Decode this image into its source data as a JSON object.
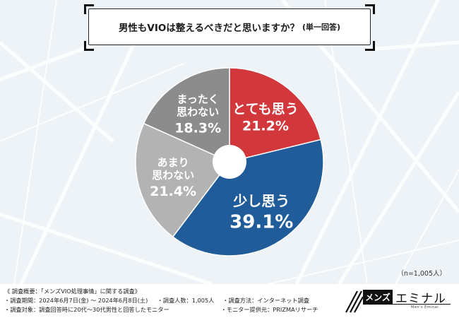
{
  "title": "男性もVIOは整えるべきだと思いますか？",
  "title_suffix": "(単一回答)",
  "sample_size": "（n=1,005人）",
  "chart_data": {
    "type": "pie",
    "donut": true,
    "slices": [
      {
        "label_lines": [
          "とても思う"
        ],
        "value": 21.2,
        "value_text": "21.2%",
        "color": "#d2373c"
      },
      {
        "label_lines": [
          "少し思う"
        ],
        "value": 39.1,
        "value_text": "39.1%",
        "color": "#1f5c99"
      },
      {
        "label_lines": [
          "あまり",
          "思わない"
        ],
        "value": 21.4,
        "value_text": "21.4%",
        "color": "#b3b3b3"
      },
      {
        "label_lines": [
          "まったく",
          "思わない"
        ],
        "value": 18.3,
        "value_text": "18.3%",
        "color": "#8c8c8c"
      }
    ]
  },
  "footer": {
    "line1": "《 調査概要：「メンズVIO処理事情」に関する調査》",
    "line2a": "・調査期間：2024年6月7日(金) 〜 2024年6月8日(土)",
    "line2b": "・調査人数：1,005人",
    "line2c": "・調査方法：インターネット調査",
    "line3a": "・調査対象：調査回答時に20代〜30代男性と回答したモニター",
    "line3b": "・モニター提供元：PRIZMAリサーチ"
  },
  "logo": {
    "badge": "メンズ",
    "name": "エミナル",
    "sub": "Men's Eminal"
  }
}
